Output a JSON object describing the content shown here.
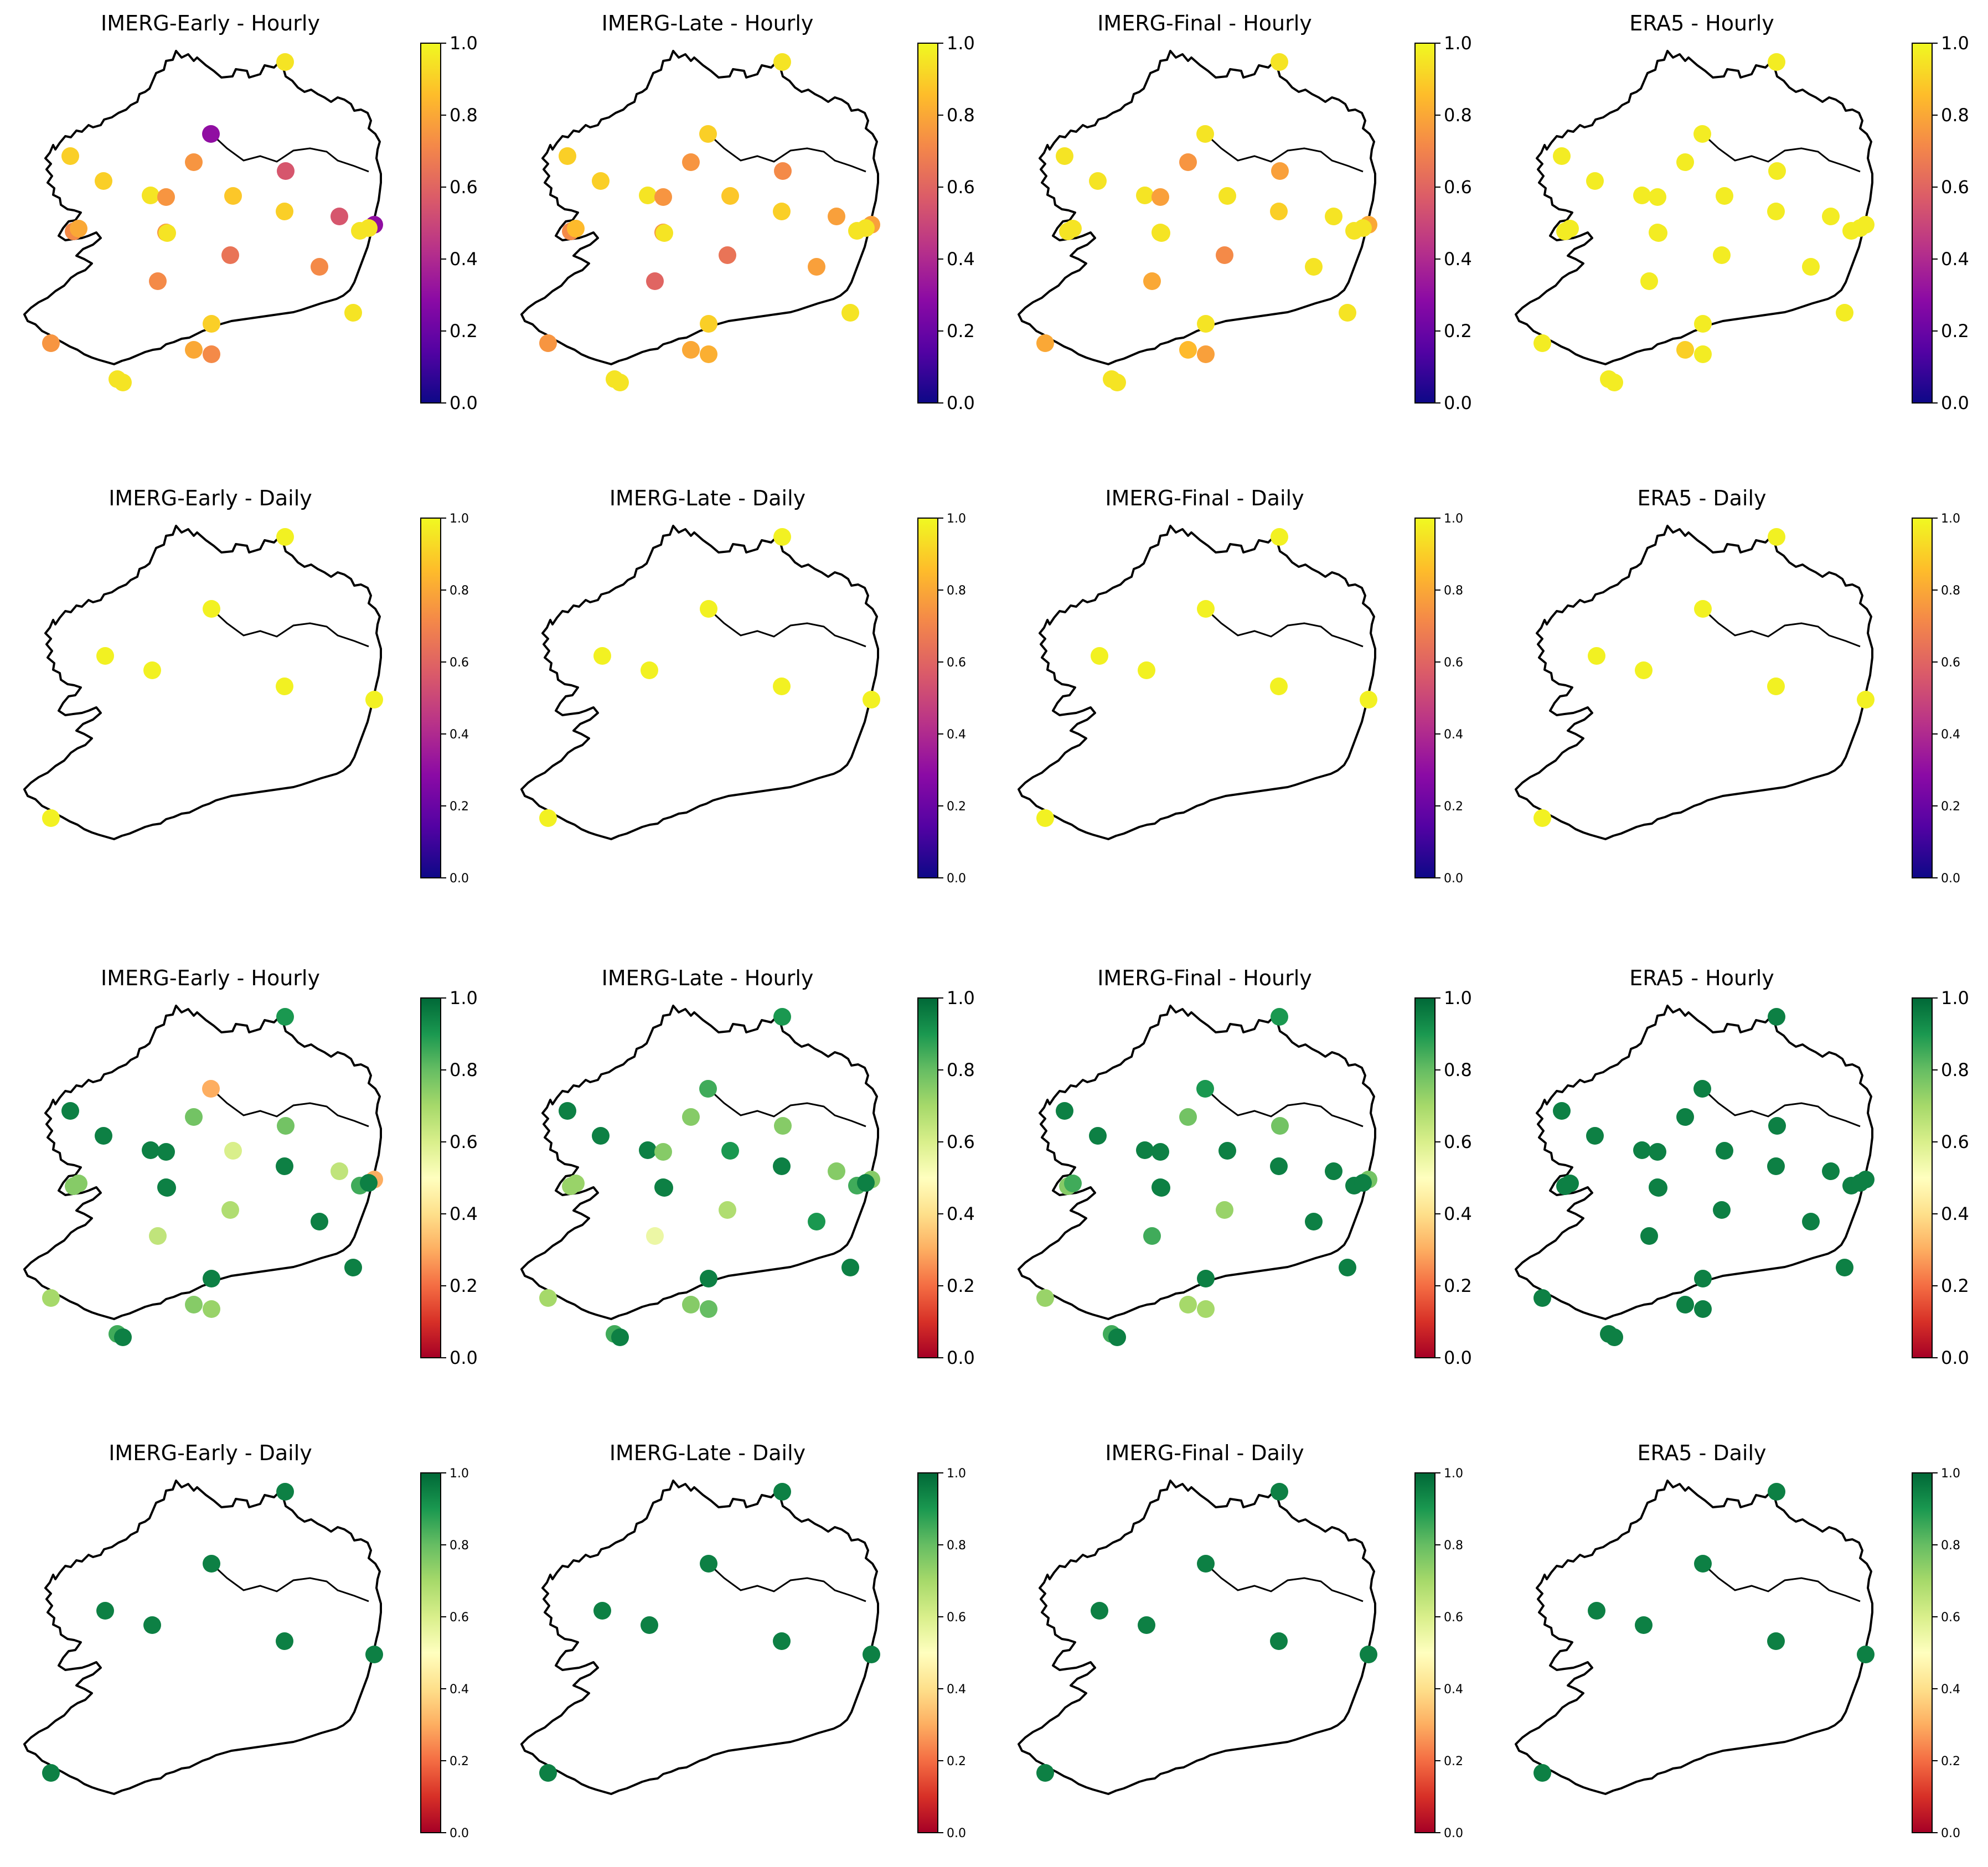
{
  "figure": {
    "colorbar_ticks": [
      "0.0",
      "0.2",
      "0.4",
      "0.6",
      "0.8",
      "1.0"
    ],
    "colormaps": {
      "plasma": [
        "#0d0887",
        "#5302a3",
        "#8b0aa5",
        "#b83289",
        "#db5c68",
        "#f48849",
        "#febd2a",
        "#f0f921"
      ],
      "RdYlGn": [
        "#a50026",
        "#d73027",
        "#f46d43",
        "#fdae61",
        "#fee08b",
        "#ffffbf",
        "#d9ef8b",
        "#a6d96a",
        "#66bd63",
        "#1a9850",
        "#006837"
      ]
    }
  },
  "chart_data": [
    {
      "type": "scatter",
      "title": "IMERG-Early - Hourly",
      "colormap": "plasma",
      "clim": [
        0,
        1
      ],
      "stations": "hourly",
      "values": [
        0.95,
        0.3,
        0.9,
        0.9,
        0.75,
        0.55,
        0.95,
        0.88,
        0.75,
        0.9,
        0.55,
        0.72,
        0.75,
        0.3,
        0.95,
        0.95,
        0.8,
        0.95,
        0.65,
        0.72,
        0.72,
        0.95,
        0.9,
        0.75,
        0.8,
        0.72,
        0.95,
        0.95
      ]
    },
    {
      "type": "scatter",
      "title": "IMERG-Late - Hourly",
      "colormap": "plasma",
      "clim": [
        0,
        1
      ],
      "stations": "hourly",
      "values": [
        0.95,
        0.9,
        0.9,
        0.9,
        0.75,
        0.72,
        0.95,
        0.88,
        0.75,
        0.9,
        0.78,
        0.72,
        0.75,
        0.78,
        0.95,
        0.95,
        0.85,
        0.95,
        0.65,
        0.78,
        0.6,
        0.95,
        0.9,
        0.75,
        0.8,
        0.82,
        0.95,
        0.95
      ]
    },
    {
      "type": "scatter",
      "title": "IMERG-Final - Hourly",
      "colormap": "plasma",
      "clim": [
        0,
        1
      ],
      "stations": "hourly",
      "values": [
        0.95,
        0.95,
        0.95,
        0.95,
        0.75,
        0.78,
        0.95,
        0.95,
        0.78,
        0.9,
        0.95,
        0.95,
        0.95,
        0.8,
        0.95,
        0.95,
        0.95,
        0.95,
        0.72,
        0.95,
        0.8,
        0.95,
        0.95,
        0.8,
        0.85,
        0.78,
        0.95,
        0.95
      ]
    },
    {
      "type": "scatter",
      "title": "ERA5 - Hourly",
      "colormap": "plasma",
      "clim": [
        0,
        1
      ],
      "stations": "hourly",
      "values": [
        0.97,
        0.97,
        0.97,
        0.97,
        0.97,
        0.97,
        0.97,
        0.97,
        0.97,
        0.97,
        0.97,
        0.97,
        0.97,
        0.97,
        0.97,
        0.97,
        0.97,
        0.97,
        0.97,
        0.97,
        0.97,
        0.97,
        0.97,
        0.97,
        0.9,
        0.97,
        0.97,
        0.97
      ]
    },
    {
      "type": "scatter",
      "title": "IMERG-Early - Daily",
      "colormap": "plasma",
      "clim": [
        0,
        1
      ],
      "stations": "daily",
      "values": [
        0.98,
        0.98,
        0.98,
        0.98,
        0.98,
        0.98,
        0.98
      ]
    },
    {
      "type": "scatter",
      "title": "IMERG-Late - Daily",
      "colormap": "plasma",
      "clim": [
        0,
        1
      ],
      "stations": "daily",
      "values": [
        0.98,
        0.98,
        0.98,
        0.98,
        0.98,
        0.98,
        0.98
      ]
    },
    {
      "type": "scatter",
      "title": "IMERG-Final - Daily",
      "colormap": "plasma",
      "clim": [
        0,
        1
      ],
      "stations": "daily",
      "values": [
        0.98,
        0.98,
        0.98,
        0.98,
        0.98,
        0.98,
        0.98
      ]
    },
    {
      "type": "scatter",
      "title": "ERA5 - Daily",
      "colormap": "plasma",
      "clim": [
        0,
        1
      ],
      "stations": "daily",
      "values": [
        0.98,
        0.98,
        0.98,
        0.98,
        0.98,
        0.98,
        0.98
      ]
    },
    {
      "type": "scatter",
      "title": "IMERG-Early - Hourly",
      "colormap": "RdYlGn",
      "clim": [
        0,
        1
      ],
      "stations": "hourly",
      "values": [
        0.9,
        0.3,
        0.95,
        0.95,
        0.78,
        0.78,
        0.95,
        0.6,
        0.95,
        0.95,
        0.65,
        0.75,
        0.95,
        0.3,
        0.85,
        0.95,
        0.75,
        0.95,
        0.68,
        0.95,
        0.65,
        0.95,
        0.95,
        0.7,
        0.75,
        0.72,
        0.85,
        0.95
      ]
    },
    {
      "type": "scatter",
      "title": "IMERG-Late - Hourly",
      "colormap": "RdYlGn",
      "clim": [
        0,
        1
      ],
      "stations": "hourly",
      "values": [
        0.9,
        0.85,
        0.95,
        0.95,
        0.75,
        0.75,
        0.95,
        0.9,
        0.75,
        0.95,
        0.75,
        0.72,
        0.95,
        0.75,
        0.85,
        0.95,
        0.72,
        0.95,
        0.68,
        0.9,
        0.55,
        0.95,
        0.95,
        0.7,
        0.75,
        0.8,
        0.85,
        0.95
      ]
    },
    {
      "type": "scatter",
      "title": "IMERG-Final - Hourly",
      "colormap": "RdYlGn",
      "clim": [
        0,
        1
      ],
      "stations": "hourly",
      "values": [
        0.9,
        0.9,
        0.95,
        0.95,
        0.78,
        0.78,
        0.95,
        0.95,
        0.95,
        0.95,
        0.95,
        0.75,
        0.95,
        0.78,
        0.95,
        0.95,
        0.85,
        0.95,
        0.72,
        0.95,
        0.85,
        0.95,
        0.95,
        0.72,
        0.7,
        0.7,
        0.85,
        0.95
      ]
    },
    {
      "type": "scatter",
      "title": "ERA5 - Hourly",
      "colormap": "RdYlGn",
      "clim": [
        0,
        1
      ],
      "stations": "hourly",
      "values": [
        0.95,
        0.95,
        0.95,
        0.95,
        0.95,
        0.95,
        0.95,
        0.95,
        0.95,
        0.95,
        0.95,
        0.95,
        0.95,
        0.95,
        0.95,
        0.95,
        0.95,
        0.95,
        0.95,
        0.95,
        0.95,
        0.95,
        0.95,
        0.95,
        0.95,
        0.95,
        0.95,
        0.95
      ]
    },
    {
      "type": "scatter",
      "title": "IMERG-Early - Daily",
      "colormap": "RdYlGn",
      "clim": [
        0,
        1
      ],
      "stations": "daily",
      "values": [
        0.95,
        0.95,
        0.95,
        0.95,
        0.95,
        0.95,
        0.95
      ]
    },
    {
      "type": "scatter",
      "title": "IMERG-Late - Daily",
      "colormap": "RdYlGn",
      "clim": [
        0,
        1
      ],
      "stations": "daily",
      "values": [
        0.95,
        0.95,
        0.95,
        0.95,
        0.95,
        0.95,
        0.95
      ]
    },
    {
      "type": "scatter",
      "title": "IMERG-Final - Daily",
      "colormap": "RdYlGn",
      "clim": [
        0,
        1
      ],
      "stations": "daily",
      "values": [
        0.95,
        0.95,
        0.95,
        0.95,
        0.95,
        0.95,
        0.95
      ]
    },
    {
      "type": "scatter",
      "title": "ERA5 - Daily",
      "colormap": "RdYlGn",
      "clim": [
        0,
        1
      ],
      "stations": "daily",
      "values": [
        0.95,
        0.95,
        0.95,
        0.95,
        0.95,
        0.95,
        0.95
      ]
    }
  ]
}
